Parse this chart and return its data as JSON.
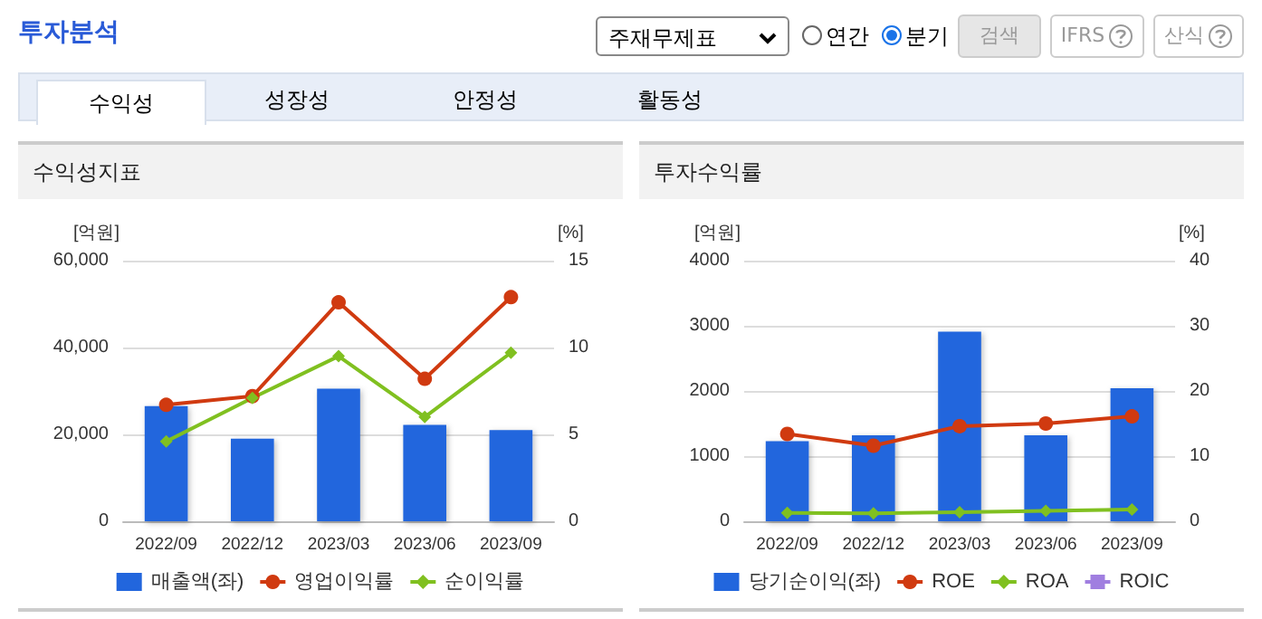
{
  "chart_data": [
    {
      "type": "other",
      "title": "투자분석",
      "annotations": [
        "주재무제표",
        "연간",
        "분기",
        "검색",
        "IFRS",
        "산식",
        "수익성",
        "성장성",
        "안정성",
        "활동성"
      ]
    },
    {
      "type": "bar",
      "title": "수익성지표",
      "ylabel": "[억원]",
      "y2label": "[%]",
      "categories": [
        "2022/09",
        "2022/12",
        "2023/03",
        "2023/06",
        "2023/09"
      ],
      "series": [
        {
          "name": "매출액(좌)",
          "type": "bar",
          "color": "#2266dd",
          "values": [
            26500,
            19000,
            30500,
            22200,
            21000
          ]
        },
        {
          "name": "영업이익률",
          "type": "line",
          "axis": "y2",
          "color": "#d03a10",
          "marker": "circle",
          "values": [
            6.7,
            7.2,
            12.6,
            8.2,
            12.9
          ]
        },
        {
          "name": "순이익률",
          "type": "line",
          "axis": "y2",
          "color": "#80c020",
          "marker": "diamond",
          "values": [
            4.6,
            7.1,
            9.5,
            6.0,
            9.7
          ]
        }
      ],
      "ylim": [
        0,
        60000
      ],
      "yticks": [
        0,
        {
          "value": 20000,
          "label": "20,000"
        },
        {
          "value": 40000,
          "label": "40,000"
        },
        {
          "value": 60000,
          "label": "60,000"
        }
      ],
      "y2lim": [
        0,
        15
      ],
      "y2ticks": [
        0,
        5,
        10,
        15
      ],
      "grid": "y",
      "legend": "bottom"
    },
    {
      "type": "bar",
      "title": "투자수익률",
      "ylabel": "[억원]",
      "y2label": "[%]",
      "categories": [
        "2022/09",
        "2022/12",
        "2023/03",
        "2023/06",
        "2023/09"
      ],
      "series": [
        {
          "name": "당기순이익(좌)",
          "type": "bar",
          "color": "#2266dd",
          "values": [
            1230,
            1320,
            2910,
            1320,
            2040
          ]
        },
        {
          "name": "ROE",
          "type": "line",
          "axis": "y2",
          "color": "#d03a10",
          "marker": "circle",
          "values": [
            13.4,
            11.6,
            14.6,
            15.0,
            16.1
          ]
        },
        {
          "name": "ROA",
          "type": "line",
          "axis": "y2",
          "color": "#80c020",
          "marker": "diamond",
          "values": [
            1.3,
            1.2,
            1.4,
            1.6,
            1.8
          ]
        },
        {
          "name": "ROIC",
          "type": "line",
          "axis": "y2",
          "color": "#a07ee0",
          "marker": "square",
          "values": [
            null,
            null,
            null,
            null,
            null
          ]
        }
      ],
      "ylim": [
        0,
        4000
      ],
      "yticks": [
        0,
        1000,
        2000,
        3000,
        4000
      ],
      "y2lim": [
        0,
        40
      ],
      "y2ticks": [
        0,
        10,
        20,
        30,
        40
      ],
      "grid": "y",
      "legend": "bottom"
    }
  ]
}
